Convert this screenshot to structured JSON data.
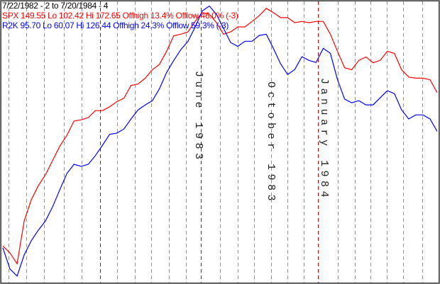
{
  "chart_data": {
    "type": "line",
    "title": "7/22/1982 - 2 to 7/20/1984 - 4",
    "annotations": [
      "June 1983",
      "October 1983",
      "January 1984"
    ],
    "ylim": [
      100.5,
      173.2
    ],
    "y2lim": [
      59.5,
      127
    ],
    "series": [
      {
        "name": "SPX",
        "stats": "149.55 Lo 102.42 Hi 172.65 Offhigh 13.4% Offlow 46.0% (-3)",
        "color": "#ff0000",
        "values": [
          109.8,
          108.0,
          105.2,
          116.3,
          121.8,
          125.5,
          128.3,
          132.0,
          135.7,
          138.5,
          142.2,
          142.5,
          143.1,
          144.9,
          144.9,
          145.9,
          147.2,
          148.1,
          151.4,
          151.8,
          153.3,
          155.5,
          156.9,
          160.3,
          164.3,
          164.7,
          165.3,
          168.0,
          170.3,
          169.9,
          167.7,
          164.7,
          165.3,
          166.6,
          166.6,
          168.0,
          169.5,
          171.4,
          170.3,
          169.0,
          169.0,
          167.7,
          168.0,
          167.7,
          168.0,
          168.0,
          164.7,
          160.3,
          156.0,
          155.5,
          157.9,
          158.8,
          157.3,
          157.9,
          160.3,
          159.7,
          155.5,
          153.6,
          153.3,
          153.3,
          152.9,
          149.55
        ]
      },
      {
        "name": "R2K",
        "stats": "95.70 Lo 60.07 Hi 126.44 Offhigh 24.3% Offlow 59.3% (-3)",
        "color": "#0000ff",
        "axis": "y2",
        "values": [
          67.7,
          62.6,
          60.9,
          66.0,
          69.4,
          72.0,
          74.2,
          77.6,
          81.7,
          85.6,
          87.8,
          87.3,
          87.8,
          89.9,
          92.4,
          95.0,
          95.3,
          96.3,
          98.7,
          100.9,
          102.1,
          103.1,
          106.0,
          109.9,
          112.8,
          115.4,
          117.4,
          120.8,
          124.7,
          125.9,
          123.9,
          120.5,
          117.1,
          116.2,
          117.4,
          117.4,
          118.8,
          119.1,
          115.7,
          112.0,
          109.4,
          110.6,
          113.7,
          112.8,
          112.3,
          115.7,
          114.5,
          108.2,
          103.5,
          102.6,
          103.1,
          102.1,
          102.1,
          103.8,
          105.5,
          104.8,
          100.9,
          98.7,
          99.7,
          99.7,
          98.7,
          95.7
        ]
      }
    ]
  }
}
